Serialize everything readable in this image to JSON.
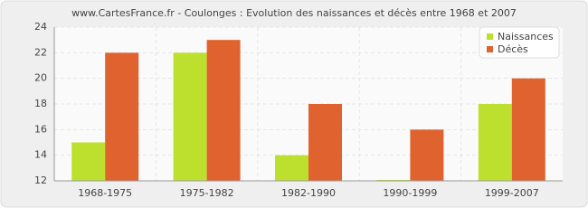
{
  "chart_data": {
    "type": "bar",
    "title": "www.CartesFrance.fr - Coulonges : Evolution des naissances et décès entre 1968 et 2007",
    "categories": [
      "1968-1975",
      "1975-1982",
      "1982-1990",
      "1990-1999",
      "1999-2007"
    ],
    "series": [
      {
        "name": "Naissances",
        "color": "#bde02e",
        "values": [
          15,
          22,
          14,
          12,
          18
        ]
      },
      {
        "name": "Décès",
        "color": "#e0632f",
        "values": [
          22,
          23,
          18,
          16,
          20
        ]
      }
    ],
    "ylim": [
      12,
      24
    ],
    "yticks": [
      12,
      14,
      16,
      18,
      20,
      22,
      24
    ],
    "grid": true,
    "legend": "top-right"
  }
}
